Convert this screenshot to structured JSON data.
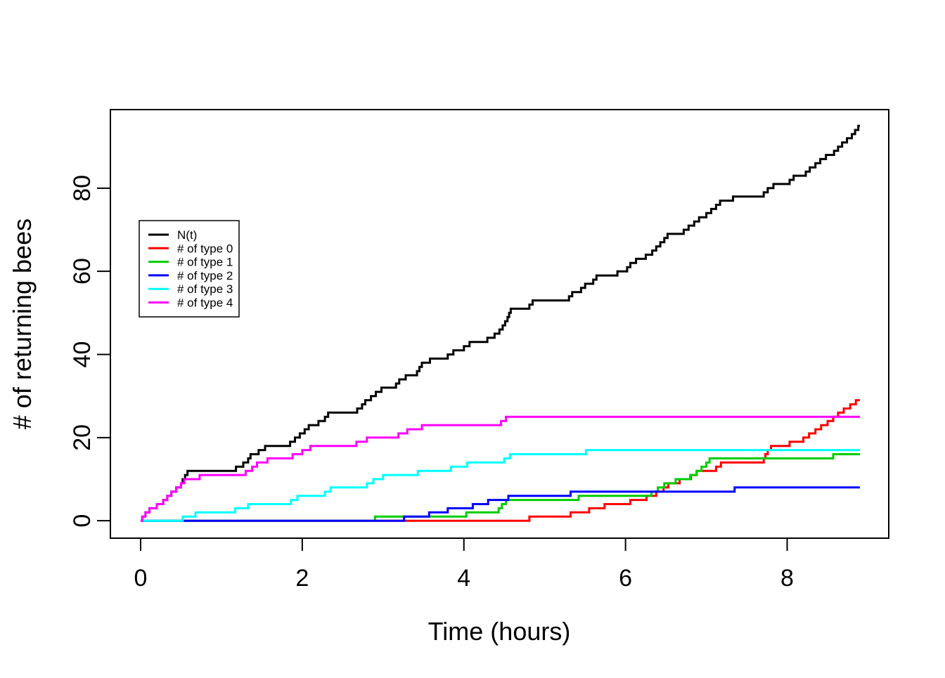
{
  "chart_data": {
    "type": "line",
    "subtype": "step-after",
    "title": "",
    "xlabel": "Time (hours)",
    "ylabel": "# of returning bees",
    "x_ticks": [
      0,
      2,
      4,
      6,
      8
    ],
    "y_ticks": [
      0,
      20,
      40,
      60,
      80
    ],
    "xlim": [
      -0.374,
      9.257
    ],
    "ylim": [
      -4.2,
      98.9
    ],
    "grid": false,
    "legend_position": "upper-left-inside",
    "axis_color": "#000000",
    "background": "#ffffff",
    "series": [
      {
        "name": "N(t)",
        "color": "#000000",
        "points": [
          [
            0,
            0
          ],
          [
            0.02,
            1
          ],
          [
            0.06,
            2
          ],
          [
            0.11,
            3
          ],
          [
            0.2,
            4
          ],
          [
            0.28,
            5
          ],
          [
            0.33,
            6
          ],
          [
            0.38,
            7
          ],
          [
            0.44,
            8
          ],
          [
            0.5,
            9
          ],
          [
            0.52,
            10
          ],
          [
            0.55,
            11
          ],
          [
            0.58,
            12
          ],
          [
            1.18,
            13
          ],
          [
            1.27,
            14
          ],
          [
            1.33,
            15
          ],
          [
            1.36,
            16
          ],
          [
            1.46,
            17
          ],
          [
            1.54,
            18
          ],
          [
            1.85,
            19
          ],
          [
            1.91,
            20
          ],
          [
            1.97,
            21
          ],
          [
            2.03,
            22
          ],
          [
            2.08,
            23
          ],
          [
            2.2,
            24
          ],
          [
            2.28,
            25
          ],
          [
            2.32,
            26
          ],
          [
            2.68,
            27
          ],
          [
            2.74,
            28
          ],
          [
            2.78,
            29
          ],
          [
            2.85,
            30
          ],
          [
            2.91,
            31
          ],
          [
            2.98,
            32
          ],
          [
            3.16,
            33
          ],
          [
            3.2,
            34
          ],
          [
            3.28,
            35
          ],
          [
            3.42,
            36
          ],
          [
            3.45,
            37
          ],
          [
            3.48,
            38
          ],
          [
            3.58,
            39
          ],
          [
            3.8,
            40
          ],
          [
            3.87,
            41
          ],
          [
            4.0,
            42
          ],
          [
            4.07,
            43
          ],
          [
            4.29,
            44
          ],
          [
            4.38,
            45
          ],
          [
            4.44,
            46
          ],
          [
            4.48,
            47
          ],
          [
            4.51,
            48
          ],
          [
            4.54,
            49
          ],
          [
            4.56,
            50
          ],
          [
            4.58,
            51
          ],
          [
            4.81,
            52
          ],
          [
            4.85,
            53
          ],
          [
            5.3,
            54
          ],
          [
            5.34,
            55
          ],
          [
            5.45,
            56
          ],
          [
            5.5,
            57
          ],
          [
            5.6,
            58
          ],
          [
            5.64,
            59
          ],
          [
            5.9,
            60
          ],
          [
            6.02,
            61
          ],
          [
            6.06,
            62
          ],
          [
            6.13,
            63
          ],
          [
            6.25,
            64
          ],
          [
            6.33,
            65
          ],
          [
            6.38,
            66
          ],
          [
            6.43,
            67
          ],
          [
            6.48,
            68
          ],
          [
            6.52,
            69
          ],
          [
            6.72,
            70
          ],
          [
            6.78,
            71
          ],
          [
            6.85,
            72
          ],
          [
            6.91,
            73
          ],
          [
            7.0,
            74
          ],
          [
            7.06,
            75
          ],
          [
            7.12,
            76
          ],
          [
            7.17,
            77
          ],
          [
            7.33,
            78
          ],
          [
            7.71,
            79
          ],
          [
            7.76,
            80
          ],
          [
            7.83,
            81
          ],
          [
            8.03,
            82
          ],
          [
            8.08,
            83
          ],
          [
            8.23,
            84
          ],
          [
            8.28,
            85
          ],
          [
            8.35,
            86
          ],
          [
            8.41,
            87
          ],
          [
            8.48,
            88
          ],
          [
            8.58,
            89
          ],
          [
            8.63,
            90
          ],
          [
            8.68,
            91
          ],
          [
            8.74,
            92
          ],
          [
            8.8,
            93
          ],
          [
            8.84,
            94
          ],
          [
            8.88,
            95
          ],
          [
            8.9,
            95
          ]
        ]
      },
      {
        "name": "# of type 0",
        "color": "#FF0000",
        "points": [
          [
            0,
            0
          ],
          [
            4.81,
            1
          ],
          [
            5.32,
            2
          ],
          [
            5.55,
            3
          ],
          [
            5.74,
            4
          ],
          [
            6.06,
            5
          ],
          [
            6.26,
            6
          ],
          [
            6.38,
            7
          ],
          [
            6.47,
            8
          ],
          [
            6.53,
            9
          ],
          [
            6.67,
            10
          ],
          [
            6.81,
            11
          ],
          [
            6.88,
            12
          ],
          [
            7.12,
            13
          ],
          [
            7.18,
            14
          ],
          [
            7.71,
            15
          ],
          [
            7.73,
            16
          ],
          [
            7.76,
            17
          ],
          [
            7.8,
            18
          ],
          [
            8.03,
            19
          ],
          [
            8.2,
            20
          ],
          [
            8.27,
            21
          ],
          [
            8.35,
            22
          ],
          [
            8.42,
            23
          ],
          [
            8.5,
            24
          ],
          [
            8.57,
            25
          ],
          [
            8.63,
            26
          ],
          [
            8.7,
            27
          ],
          [
            8.78,
            28
          ],
          [
            8.85,
            29
          ],
          [
            8.9,
            29
          ]
        ]
      },
      {
        "name": "# of type 1",
        "color": "#00CD00",
        "points": [
          [
            0,
            0
          ],
          [
            2.9,
            1
          ],
          [
            4.03,
            2
          ],
          [
            4.43,
            3
          ],
          [
            4.47,
            4
          ],
          [
            4.52,
            5
          ],
          [
            5.42,
            6
          ],
          [
            6.32,
            7
          ],
          [
            6.4,
            8
          ],
          [
            6.48,
            9
          ],
          [
            6.62,
            10
          ],
          [
            6.8,
            11
          ],
          [
            6.88,
            12
          ],
          [
            6.94,
            13
          ],
          [
            7.0,
            14
          ],
          [
            7.04,
            15
          ],
          [
            8.57,
            16
          ],
          [
            8.9,
            16
          ]
        ]
      },
      {
        "name": "# of type 2",
        "color": "#0000FF",
        "points": [
          [
            0,
            0
          ],
          [
            3.26,
            1
          ],
          [
            3.57,
            2
          ],
          [
            3.8,
            3
          ],
          [
            4.11,
            4
          ],
          [
            4.3,
            5
          ],
          [
            4.55,
            6
          ],
          [
            5.32,
            7
          ],
          [
            7.35,
            8
          ],
          [
            8.9,
            8
          ]
        ]
      },
      {
        "name": "# of type 3",
        "color": "#00FFFF",
        "points": [
          [
            0,
            0
          ],
          [
            0.52,
            1
          ],
          [
            0.68,
            2
          ],
          [
            1.17,
            3
          ],
          [
            1.33,
            4
          ],
          [
            1.86,
            5
          ],
          [
            1.94,
            6
          ],
          [
            2.28,
            7
          ],
          [
            2.35,
            8
          ],
          [
            2.8,
            9
          ],
          [
            2.88,
            10
          ],
          [
            3.0,
            11
          ],
          [
            3.43,
            12
          ],
          [
            3.84,
            13
          ],
          [
            4.04,
            14
          ],
          [
            4.5,
            15
          ],
          [
            4.57,
            16
          ],
          [
            5.51,
            17
          ],
          [
            8.9,
            17
          ]
        ]
      },
      {
        "name": "# of type 4",
        "color": "#FF00FF",
        "points": [
          [
            0,
            0
          ],
          [
            0.02,
            1
          ],
          [
            0.06,
            2
          ],
          [
            0.11,
            3
          ],
          [
            0.2,
            4
          ],
          [
            0.28,
            5
          ],
          [
            0.33,
            6
          ],
          [
            0.38,
            7
          ],
          [
            0.44,
            8
          ],
          [
            0.5,
            9
          ],
          [
            0.54,
            10
          ],
          [
            0.73,
            11
          ],
          [
            1.3,
            12
          ],
          [
            1.38,
            13
          ],
          [
            1.44,
            14
          ],
          [
            1.57,
            15
          ],
          [
            1.88,
            16
          ],
          [
            2.0,
            17
          ],
          [
            2.1,
            18
          ],
          [
            2.67,
            19
          ],
          [
            2.8,
            20
          ],
          [
            3.19,
            21
          ],
          [
            3.3,
            22
          ],
          [
            3.48,
            23
          ],
          [
            4.46,
            24
          ],
          [
            4.52,
            25
          ],
          [
            8.9,
            25
          ]
        ]
      }
    ]
  }
}
